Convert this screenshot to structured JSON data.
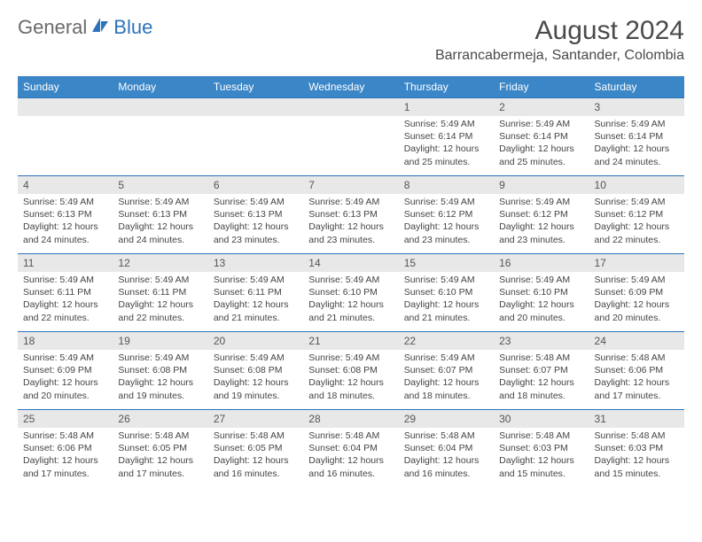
{
  "logo": {
    "general": "General",
    "blue": "Blue"
  },
  "header": {
    "month_title": "August 2024",
    "location": "Barrancabermeja, Santander, Colombia"
  },
  "colors": {
    "header_bg": "#3b86c7",
    "header_text": "#ffffff",
    "row_border": "#2d73b9",
    "daynum_bg": "#e8e8e8",
    "text": "#444444",
    "logo_blue": "#2d73b9",
    "logo_gray": "#6a6a6a"
  },
  "weekdays": [
    "Sunday",
    "Monday",
    "Tuesday",
    "Wednesday",
    "Thursday",
    "Friday",
    "Saturday"
  ],
  "weeks": [
    [
      {
        "blank": true
      },
      {
        "blank": true
      },
      {
        "blank": true
      },
      {
        "blank": true
      },
      {
        "num": "1",
        "sunrise": "Sunrise: 5:49 AM",
        "sunset": "Sunset: 6:14 PM",
        "daylight": "Daylight: 12 hours and 25 minutes."
      },
      {
        "num": "2",
        "sunrise": "Sunrise: 5:49 AM",
        "sunset": "Sunset: 6:14 PM",
        "daylight": "Daylight: 12 hours and 25 minutes."
      },
      {
        "num": "3",
        "sunrise": "Sunrise: 5:49 AM",
        "sunset": "Sunset: 6:14 PM",
        "daylight": "Daylight: 12 hours and 24 minutes."
      }
    ],
    [
      {
        "num": "4",
        "sunrise": "Sunrise: 5:49 AM",
        "sunset": "Sunset: 6:13 PM",
        "daylight": "Daylight: 12 hours and 24 minutes."
      },
      {
        "num": "5",
        "sunrise": "Sunrise: 5:49 AM",
        "sunset": "Sunset: 6:13 PM",
        "daylight": "Daylight: 12 hours and 24 minutes."
      },
      {
        "num": "6",
        "sunrise": "Sunrise: 5:49 AM",
        "sunset": "Sunset: 6:13 PM",
        "daylight": "Daylight: 12 hours and 23 minutes."
      },
      {
        "num": "7",
        "sunrise": "Sunrise: 5:49 AM",
        "sunset": "Sunset: 6:13 PM",
        "daylight": "Daylight: 12 hours and 23 minutes."
      },
      {
        "num": "8",
        "sunrise": "Sunrise: 5:49 AM",
        "sunset": "Sunset: 6:12 PM",
        "daylight": "Daylight: 12 hours and 23 minutes."
      },
      {
        "num": "9",
        "sunrise": "Sunrise: 5:49 AM",
        "sunset": "Sunset: 6:12 PM",
        "daylight": "Daylight: 12 hours and 23 minutes."
      },
      {
        "num": "10",
        "sunrise": "Sunrise: 5:49 AM",
        "sunset": "Sunset: 6:12 PM",
        "daylight": "Daylight: 12 hours and 22 minutes."
      }
    ],
    [
      {
        "num": "11",
        "sunrise": "Sunrise: 5:49 AM",
        "sunset": "Sunset: 6:11 PM",
        "daylight": "Daylight: 12 hours and 22 minutes."
      },
      {
        "num": "12",
        "sunrise": "Sunrise: 5:49 AM",
        "sunset": "Sunset: 6:11 PM",
        "daylight": "Daylight: 12 hours and 22 minutes."
      },
      {
        "num": "13",
        "sunrise": "Sunrise: 5:49 AM",
        "sunset": "Sunset: 6:11 PM",
        "daylight": "Daylight: 12 hours and 21 minutes."
      },
      {
        "num": "14",
        "sunrise": "Sunrise: 5:49 AM",
        "sunset": "Sunset: 6:10 PM",
        "daylight": "Daylight: 12 hours and 21 minutes."
      },
      {
        "num": "15",
        "sunrise": "Sunrise: 5:49 AM",
        "sunset": "Sunset: 6:10 PM",
        "daylight": "Daylight: 12 hours and 21 minutes."
      },
      {
        "num": "16",
        "sunrise": "Sunrise: 5:49 AM",
        "sunset": "Sunset: 6:10 PM",
        "daylight": "Daylight: 12 hours and 20 minutes."
      },
      {
        "num": "17",
        "sunrise": "Sunrise: 5:49 AM",
        "sunset": "Sunset: 6:09 PM",
        "daylight": "Daylight: 12 hours and 20 minutes."
      }
    ],
    [
      {
        "num": "18",
        "sunrise": "Sunrise: 5:49 AM",
        "sunset": "Sunset: 6:09 PM",
        "daylight": "Daylight: 12 hours and 20 minutes."
      },
      {
        "num": "19",
        "sunrise": "Sunrise: 5:49 AM",
        "sunset": "Sunset: 6:08 PM",
        "daylight": "Daylight: 12 hours and 19 minutes."
      },
      {
        "num": "20",
        "sunrise": "Sunrise: 5:49 AM",
        "sunset": "Sunset: 6:08 PM",
        "daylight": "Daylight: 12 hours and 19 minutes."
      },
      {
        "num": "21",
        "sunrise": "Sunrise: 5:49 AM",
        "sunset": "Sunset: 6:08 PM",
        "daylight": "Daylight: 12 hours and 18 minutes."
      },
      {
        "num": "22",
        "sunrise": "Sunrise: 5:49 AM",
        "sunset": "Sunset: 6:07 PM",
        "daylight": "Daylight: 12 hours and 18 minutes."
      },
      {
        "num": "23",
        "sunrise": "Sunrise: 5:48 AM",
        "sunset": "Sunset: 6:07 PM",
        "daylight": "Daylight: 12 hours and 18 minutes."
      },
      {
        "num": "24",
        "sunrise": "Sunrise: 5:48 AM",
        "sunset": "Sunset: 6:06 PM",
        "daylight": "Daylight: 12 hours and 17 minutes."
      }
    ],
    [
      {
        "num": "25",
        "sunrise": "Sunrise: 5:48 AM",
        "sunset": "Sunset: 6:06 PM",
        "daylight": "Daylight: 12 hours and 17 minutes."
      },
      {
        "num": "26",
        "sunrise": "Sunrise: 5:48 AM",
        "sunset": "Sunset: 6:05 PM",
        "daylight": "Daylight: 12 hours and 17 minutes."
      },
      {
        "num": "27",
        "sunrise": "Sunrise: 5:48 AM",
        "sunset": "Sunset: 6:05 PM",
        "daylight": "Daylight: 12 hours and 16 minutes."
      },
      {
        "num": "28",
        "sunrise": "Sunrise: 5:48 AM",
        "sunset": "Sunset: 6:04 PM",
        "daylight": "Daylight: 12 hours and 16 minutes."
      },
      {
        "num": "29",
        "sunrise": "Sunrise: 5:48 AM",
        "sunset": "Sunset: 6:04 PM",
        "daylight": "Daylight: 12 hours and 16 minutes."
      },
      {
        "num": "30",
        "sunrise": "Sunrise: 5:48 AM",
        "sunset": "Sunset: 6:03 PM",
        "daylight": "Daylight: 12 hours and 15 minutes."
      },
      {
        "num": "31",
        "sunrise": "Sunrise: 5:48 AM",
        "sunset": "Sunset: 6:03 PM",
        "daylight": "Daylight: 12 hours and 15 minutes."
      }
    ]
  ]
}
